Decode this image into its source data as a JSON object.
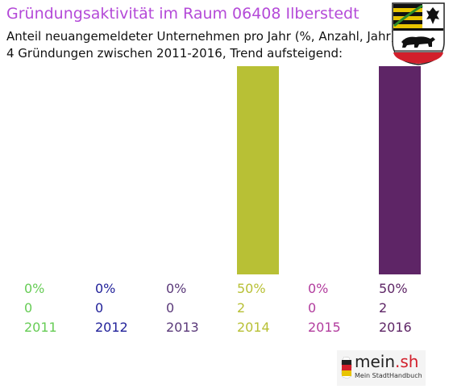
{
  "title": "Gründungsaktivität im Raum 06408 Ilberstedt",
  "subtitle_line1": "Anteil neuangemeldeter Unternehmen pro Jahr (%, Anzahl, Jahr)",
  "subtitle_line2": "4 Gründungen zwischen 2011-2016, Trend aufsteigend:",
  "crest": "coat-of-arms-saxony-anhalt",
  "logo": {
    "name": "mein",
    "suffix": ".sh",
    "tagline": "Mein StadtHandbuch"
  },
  "chart_data": {
    "type": "bar",
    "categories": [
      "2011",
      "2012",
      "2013",
      "2014",
      "2015",
      "2016"
    ],
    "values": [
      0,
      0,
      0,
      50,
      0,
      50
    ],
    "counts": [
      0,
      0,
      0,
      2,
      0,
      2
    ],
    "percent_labels": [
      "0%",
      "0%",
      "0%",
      "50%",
      "0%",
      "50%"
    ],
    "count_labels": [
      "0",
      "0",
      "0",
      "2",
      "0",
      "2"
    ],
    "colors": [
      "#66cc55",
      "#22229a",
      "#5b3a7a",
      "#b8c035",
      "#b23d9e",
      "#5e2566"
    ],
    "ylim": [
      0,
      50
    ],
    "grid": false
  }
}
